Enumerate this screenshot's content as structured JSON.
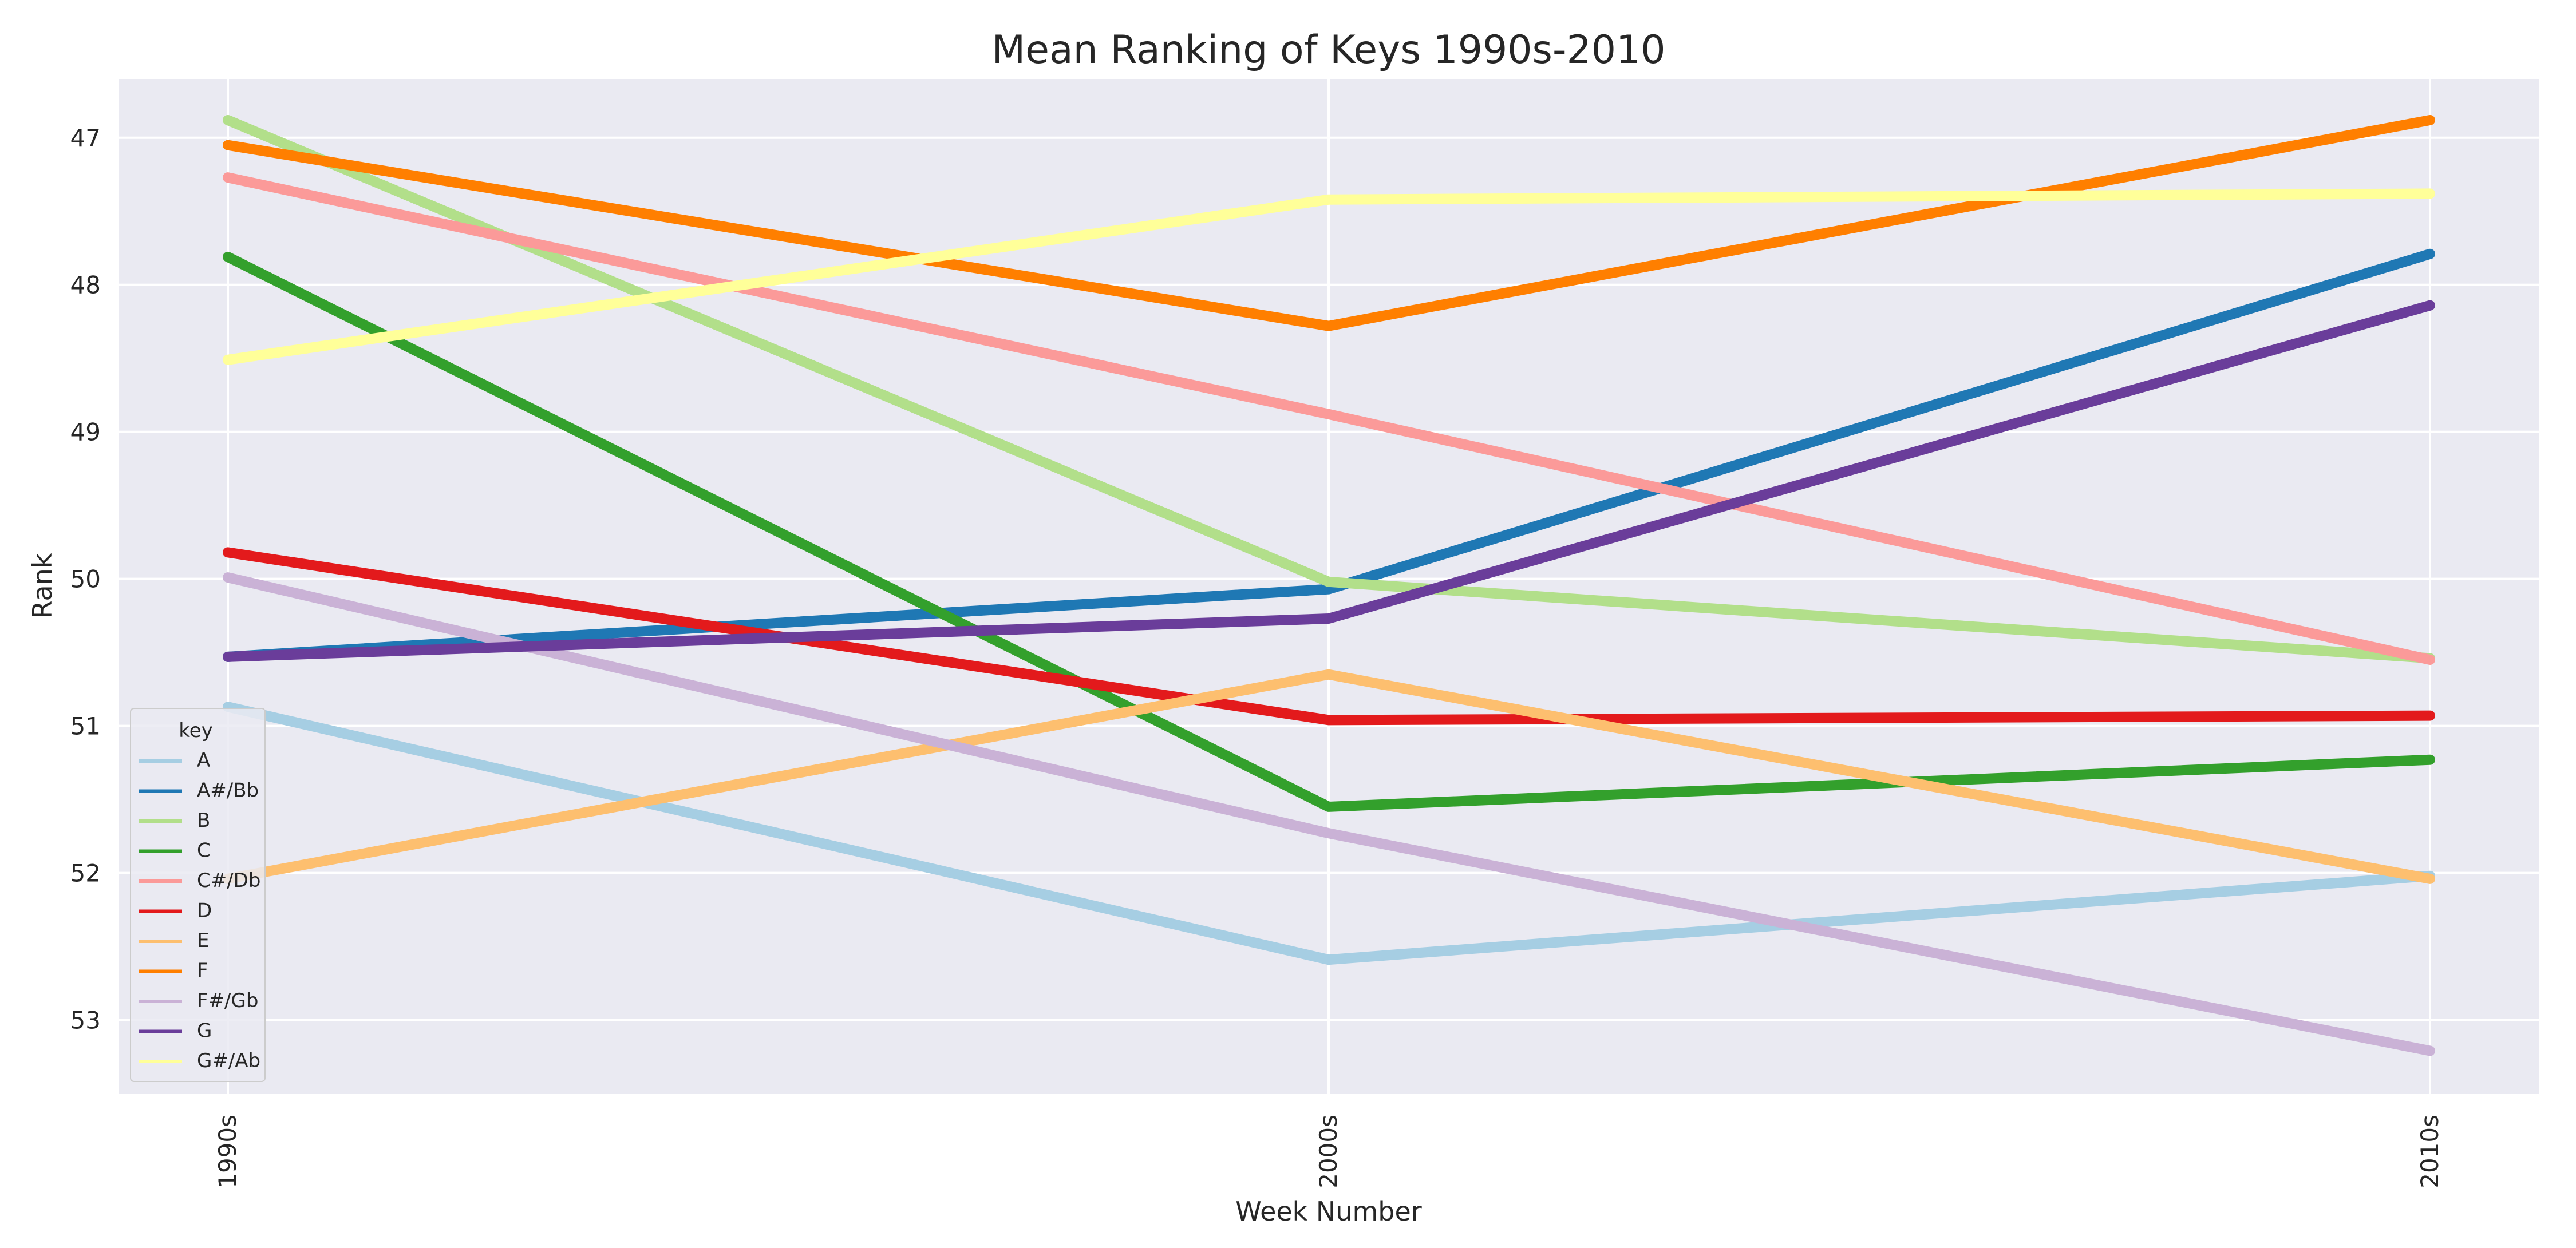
{
  "chart_data": {
    "type": "line",
    "title": "Mean Ranking of Keys 1990s-2010",
    "xlabel": "Week Number",
    "ylabel": "Rank",
    "categories": [
      "1990s",
      "2000s",
      "2010s"
    ],
    "yticks": [
      47,
      48,
      49,
      50,
      51,
      52,
      53
    ],
    "ylim": [
      53.5,
      46.6
    ],
    "y_inverted": true,
    "grid": true,
    "legend": {
      "title": "key",
      "placement": "lower-left"
    },
    "series": [
      {
        "name": "A",
        "color": "#a6cee3",
        "values": [
          50.87,
          52.59,
          52.02
        ]
      },
      {
        "name": "A#/Bb",
        "color": "#1f78b4",
        "values": [
          50.53,
          50.07,
          47.79
        ]
      },
      {
        "name": "B",
        "color": "#b2df8a",
        "values": [
          46.88,
          50.02,
          50.54
        ]
      },
      {
        "name": "C",
        "color": "#33a02c",
        "values": [
          47.81,
          51.55,
          51.23
        ]
      },
      {
        "name": "C#/Db",
        "color": "#fb9a99",
        "values": [
          47.27,
          48.88,
          50.55
        ]
      },
      {
        "name": "D",
        "color": "#e31a1c",
        "values": [
          49.82,
          50.96,
          50.93
        ]
      },
      {
        "name": "E",
        "color": "#fdbf6f",
        "values": [
          52.04,
          50.65,
          52.04
        ]
      },
      {
        "name": "F",
        "color": "#ff7f00",
        "values": [
          47.05,
          48.28,
          46.88
        ]
      },
      {
        "name": "F#/Gb",
        "color": "#cab2d6",
        "values": [
          49.99,
          51.73,
          53.21
        ]
      },
      {
        "name": "G",
        "color": "#6a3d9a",
        "values": [
          50.53,
          50.27,
          48.14
        ]
      },
      {
        "name": "G#/Ab",
        "color": "#ffff99",
        "values": [
          48.51,
          47.42,
          47.38
        ]
      }
    ]
  }
}
